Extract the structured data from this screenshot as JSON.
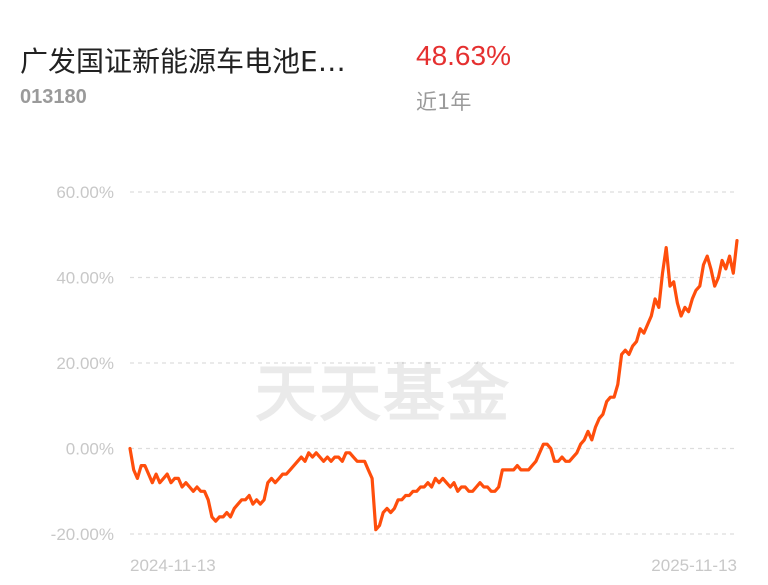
{
  "fund": {
    "name": "广发国证新能源车电池E…",
    "code": "013180",
    "return_value": "48.63%",
    "return_period": "近1年"
  },
  "watermark": "天天基金",
  "colors": {
    "line": "#ff4e0c",
    "return": "#e53030",
    "grid": "#dddddd",
    "axis_text": "#c8c8c8"
  },
  "chart_data": {
    "type": "line",
    "title": "",
    "xlabel": "",
    "ylabel": "",
    "grid": true,
    "ylim": [
      -20,
      60
    ],
    "y_ticks": [
      60,
      40,
      20,
      0,
      -20
    ],
    "y_tick_labels": [
      "60.00%",
      "40.00%",
      "20.00%",
      "0.00%",
      "-20.00%"
    ],
    "x_tick_labels": [
      "2024-11-13",
      "2025-11-13"
    ],
    "series": [
      {
        "unit": "%",
        "x_start": "2024-11-13",
        "x_end": "2025-11-13",
        "values": [
          0,
          -5,
          -7,
          -4,
          -4,
          -6,
          -8,
          -6,
          -8,
          -7,
          -6,
          -8,
          -7,
          -7,
          -9,
          -8,
          -9,
          -10,
          -9,
          -10,
          -10,
          -12,
          -16,
          -17,
          -16,
          -16,
          -15,
          -16,
          -14,
          -13,
          -12,
          -12,
          -11,
          -13,
          -12,
          -13,
          -12,
          -8,
          -7,
          -8,
          -7,
          -6,
          -6,
          -5,
          -4,
          -3,
          -2,
          -3,
          -1,
          -2,
          -1,
          -2,
          -3,
          -2,
          -3,
          -2,
          -2,
          -3,
          -1,
          -1,
          -2,
          -3,
          -3,
          -3,
          -5,
          -7,
          -19,
          -18,
          -15,
          -14,
          -15,
          -14,
          -12,
          -12,
          -11,
          -11,
          -10,
          -10,
          -9,
          -9,
          -8,
          -9,
          -7,
          -8,
          -7,
          -8,
          -9,
          -8,
          -10,
          -9,
          -9,
          -10,
          -10,
          -9,
          -8,
          -9,
          -9,
          -10,
          -10,
          -9,
          -5,
          -5,
          -5,
          -5,
          -4,
          -5,
          -5,
          -5,
          -4,
          -3,
          -1,
          1,
          1,
          0,
          -3,
          -3,
          -2,
          -3,
          -3,
          -2,
          -1,
          1,
          2,
          4,
          2,
          5,
          7,
          8,
          11,
          12,
          12,
          15,
          22,
          23,
          22,
          24,
          25,
          28,
          27,
          29,
          31,
          35,
          33,
          41,
          47,
          38,
          39,
          34,
          31,
          33,
          32,
          35,
          37,
          38,
          43,
          45,
          42,
          38,
          40,
          44,
          42,
          45,
          41,
          48.63
        ]
      }
    ]
  }
}
